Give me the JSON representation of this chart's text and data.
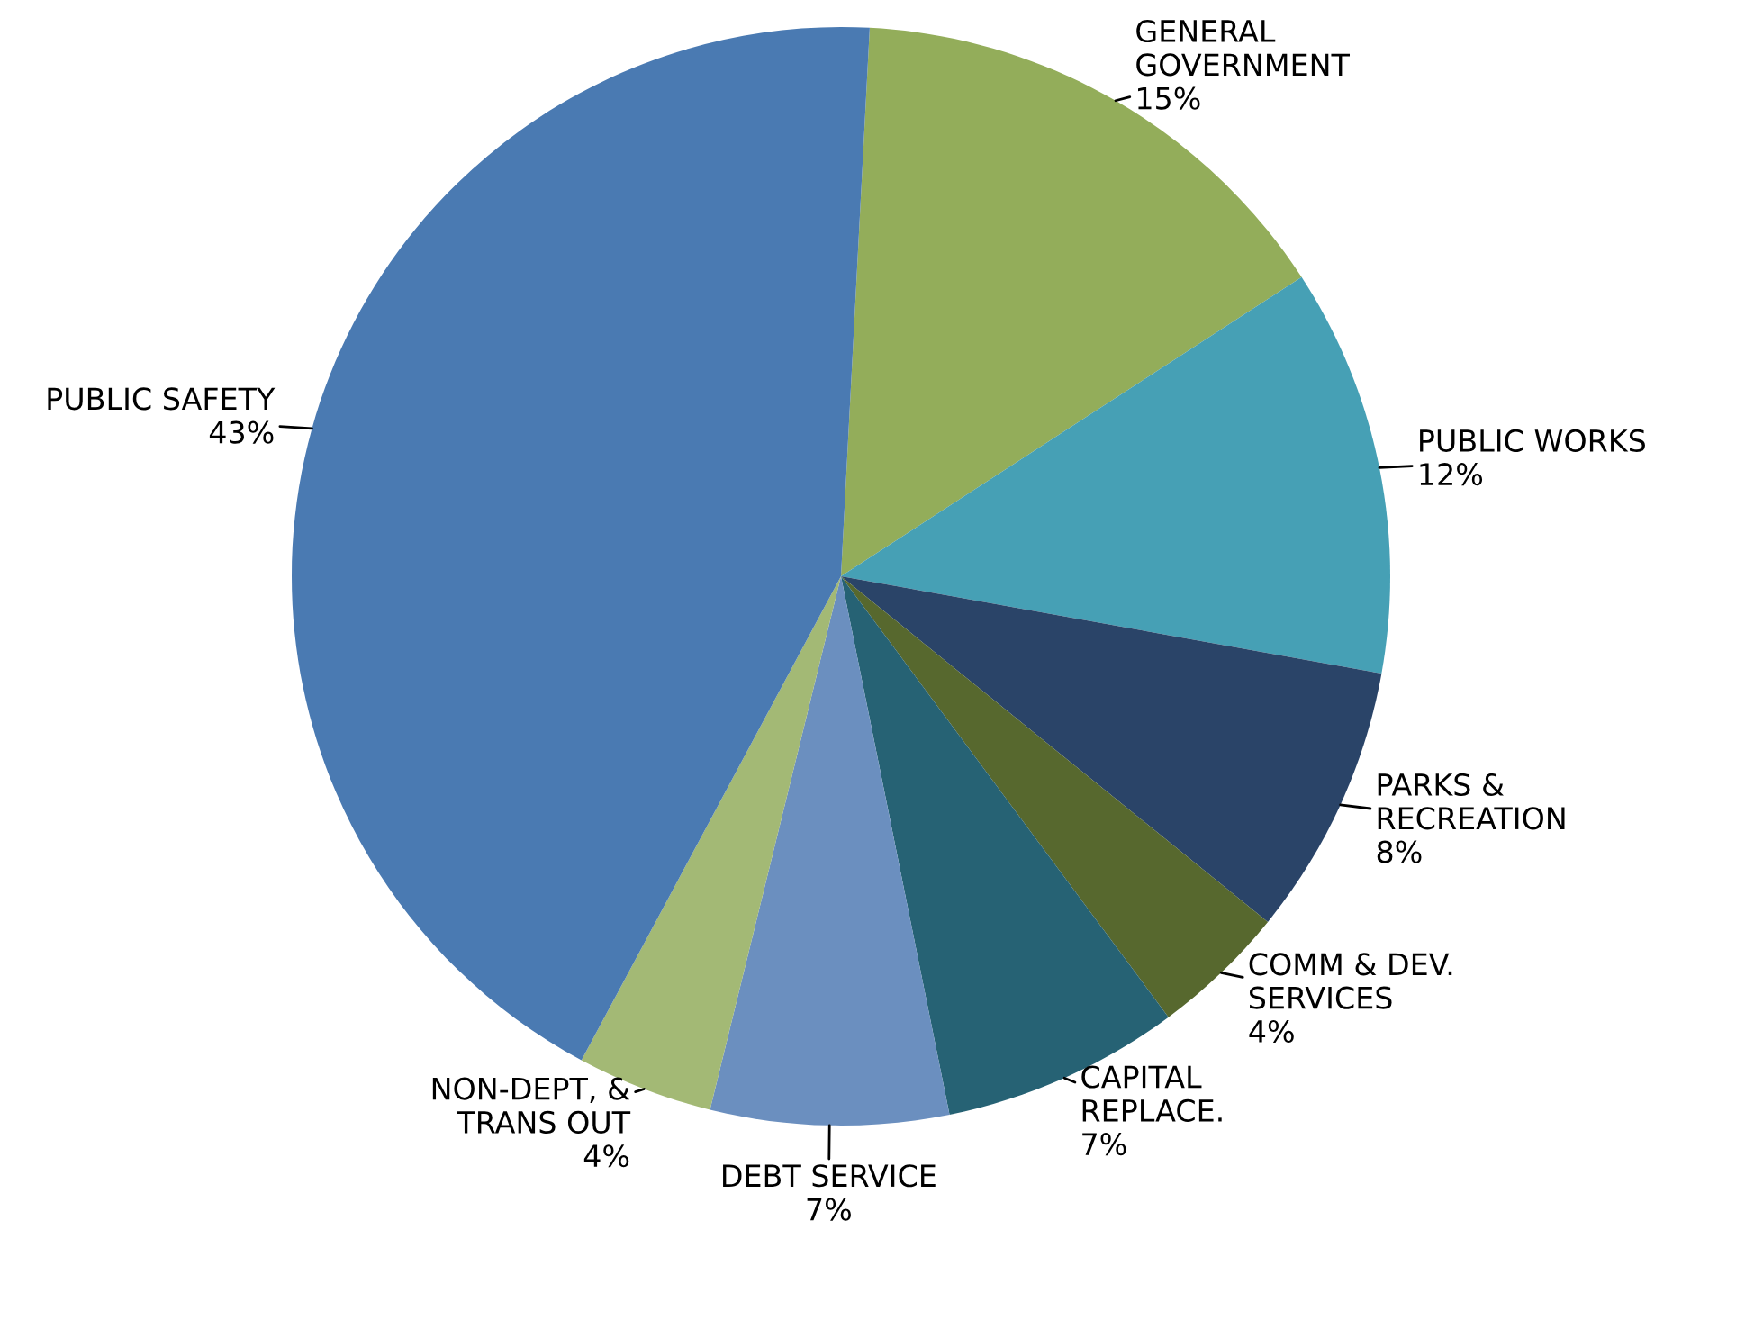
{
  "chart_data": {
    "type": "pie",
    "categories": [
      "GENERAL\nGOVERNMENT",
      "PUBLIC WORKS",
      "PARKS &\nRECREATION",
      "COMM & DEV.\nSERVICES",
      "CAPITAL\nREPLACE.",
      "DEBT SERVICE",
      "NON-DEPT, &\nTRANS OUT",
      "PUBLIC SAFETY"
    ],
    "values": [
      15,
      12,
      8,
      4,
      7,
      7,
      4,
      43
    ],
    "colors": [
      "#93ad5a",
      "#46a0b5",
      "#2a4468",
      "#57682e",
      "#266274",
      "#6b8fbf",
      "#a3b975",
      "#4a7ab2"
    ],
    "value_labels": [
      "15%",
      "12%",
      "8%",
      "4%",
      "7%",
      "7%",
      "4%",
      "43%"
    ]
  }
}
